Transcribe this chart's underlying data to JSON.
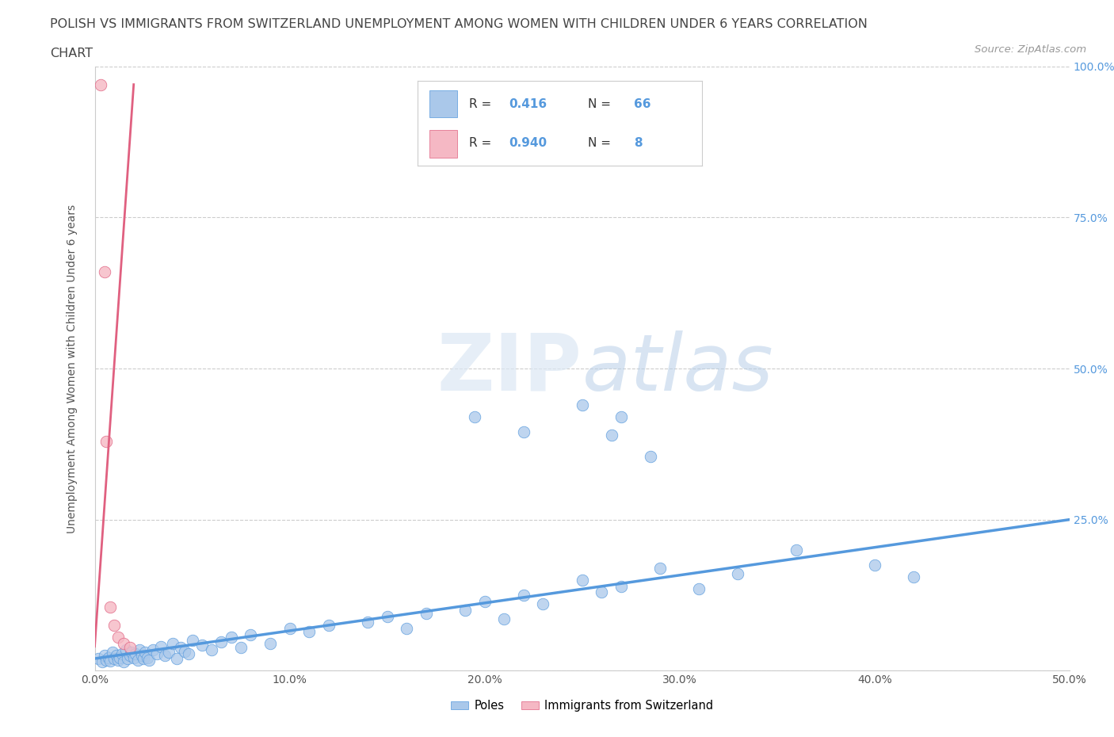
{
  "title_line1": "POLISH VS IMMIGRANTS FROM SWITZERLAND UNEMPLOYMENT AMONG WOMEN WITH CHILDREN UNDER 6 YEARS CORRELATION",
  "title_line2": "CHART",
  "source_text": "Source: ZipAtlas.com",
  "ylabel": "Unemployment Among Women with Children Under 6 years",
  "xlim": [
    0,
    0.5
  ],
  "ylim": [
    0,
    1.0
  ],
  "xtick_vals": [
    0.0,
    0.1,
    0.2,
    0.3,
    0.4,
    0.5
  ],
  "xtick_labels": [
    "0.0%",
    "10.0%",
    "20.0%",
    "30.0%",
    "40.0%",
    "50.0%"
  ],
  "ytick_vals": [
    0.0,
    0.25,
    0.5,
    0.75,
    1.0
  ],
  "ytick_labels_right": [
    "",
    "25.0%",
    "50.0%",
    "75.0%",
    "100.0%"
  ],
  "blue_R": 0.416,
  "blue_N": 66,
  "pink_R": 0.94,
  "pink_N": 8,
  "blue_color": "#aac8ea",
  "pink_color": "#f5b8c4",
  "blue_line_color": "#5599dd",
  "pink_line_color": "#e06080",
  "watermark_color": "#d0e4f0",
  "legend_label_blue": "Poles",
  "legend_label_pink": "Immigrants from Switzerland",
  "blue_scatter_x": [
    0.002,
    0.004,
    0.005,
    0.006,
    0.007,
    0.008,
    0.009,
    0.01,
    0.011,
    0.012,
    0.013,
    0.014,
    0.015,
    0.016,
    0.017,
    0.018,
    0.019,
    0.02,
    0.021,
    0.022,
    0.023,
    0.024,
    0.025,
    0.026,
    0.027,
    0.028,
    0.03,
    0.032,
    0.034,
    0.036,
    0.038,
    0.04,
    0.042,
    0.044,
    0.046,
    0.048,
    0.05,
    0.055,
    0.06,
    0.065,
    0.07,
    0.075,
    0.08,
    0.09,
    0.1,
    0.11,
    0.12,
    0.14,
    0.15,
    0.16,
    0.17,
    0.19,
    0.2,
    0.21,
    0.22,
    0.23,
    0.25,
    0.26,
    0.27,
    0.29,
    0.31,
    0.33,
    0.36,
    0.4,
    0.42
  ],
  "blue_scatter_y": [
    0.02,
    0.015,
    0.025,
    0.018,
    0.022,
    0.016,
    0.03,
    0.02,
    0.025,
    0.018,
    0.022,
    0.028,
    0.015,
    0.035,
    0.02,
    0.025,
    0.03,
    0.022,
    0.028,
    0.018,
    0.035,
    0.025,
    0.02,
    0.03,
    0.022,
    0.018,
    0.035,
    0.028,
    0.04,
    0.025,
    0.03,
    0.045,
    0.02,
    0.038,
    0.032,
    0.028,
    0.05,
    0.042,
    0.035,
    0.048,
    0.055,
    0.038,
    0.06,
    0.045,
    0.07,
    0.065,
    0.075,
    0.08,
    0.09,
    0.07,
    0.095,
    0.1,
    0.115,
    0.085,
    0.125,
    0.11,
    0.15,
    0.13,
    0.14,
    0.17,
    0.135,
    0.16,
    0.2,
    0.175,
    0.155
  ],
  "blue_outlier_x": [
    0.195,
    0.22,
    0.25,
    0.265,
    0.27,
    0.285
  ],
  "blue_outlier_y": [
    0.42,
    0.395,
    0.44,
    0.39,
    0.42,
    0.355
  ],
  "pink_scatter_x": [
    0.003,
    0.005,
    0.006,
    0.008,
    0.01,
    0.012,
    0.015,
    0.018
  ],
  "pink_scatter_y": [
    0.97,
    0.66,
    0.38,
    0.105,
    0.075,
    0.055,
    0.045,
    0.038
  ],
  "blue_line_x": [
    0.0,
    0.5
  ],
  "blue_line_y": [
    0.02,
    0.25
  ],
  "pink_line_x": [
    0.0,
    0.02
  ],
  "pink_line_y": [
    0.04,
    0.97
  ]
}
